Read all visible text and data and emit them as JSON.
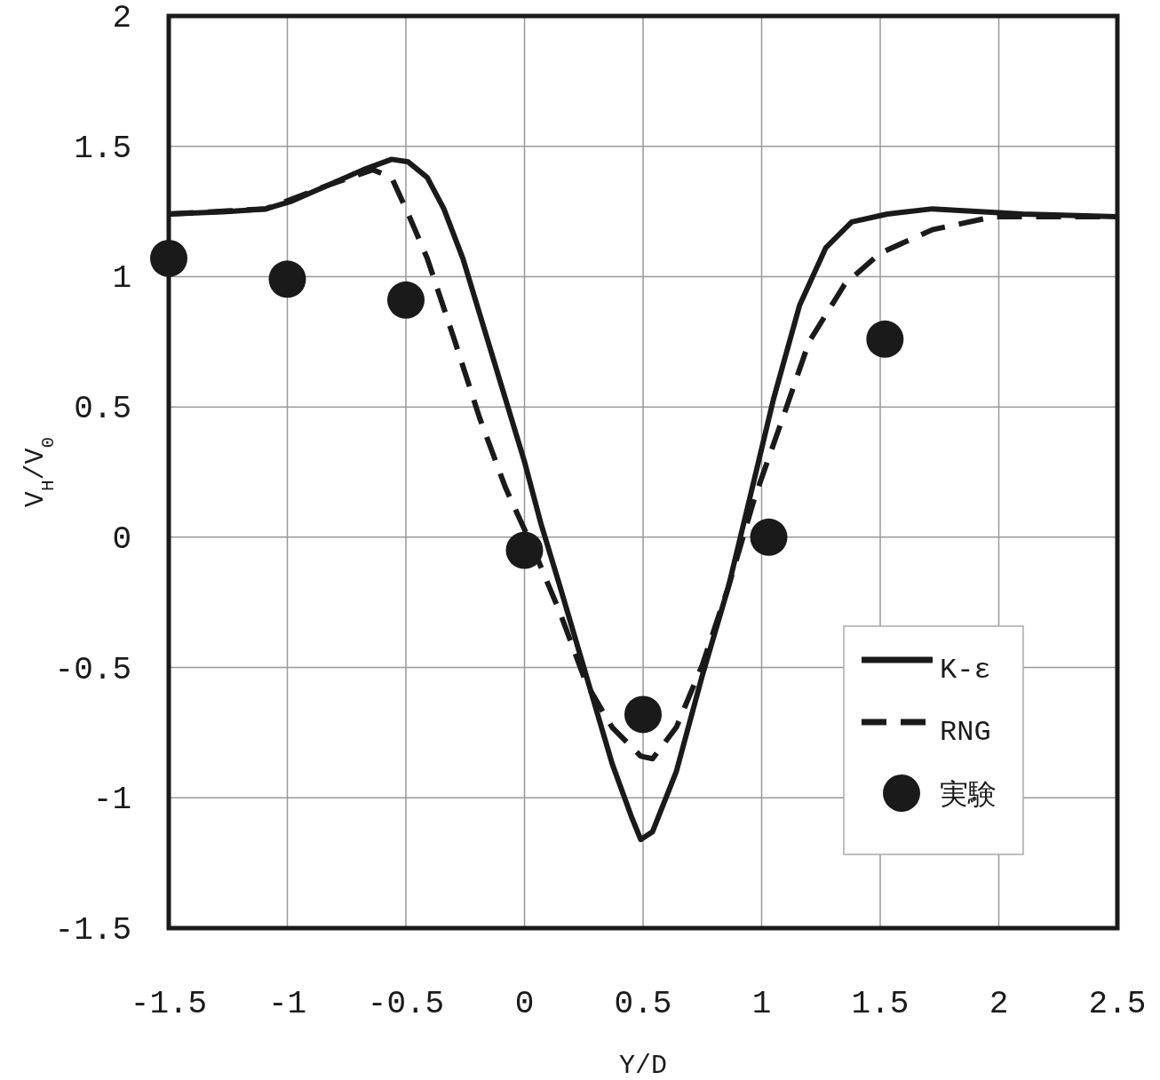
{
  "chart_data": {
    "type": "line",
    "xlabel": "Y/D",
    "ylabel": "V$_{H}$/V$_{0}$",
    "xlim": [
      -1.5,
      2.5
    ],
    "xticks": [
      -1.5,
      -1,
      -0.5,
      0,
      0.5,
      1,
      1.5,
      2,
      2.5
    ],
    "ylim": [
      -1.5,
      2
    ],
    "yticks": [
      -1.5,
      -1,
      -0.5,
      0,
      0.5,
      1,
      1.5,
      2
    ],
    "grid": true,
    "legend": "bottom right",
    "series": [
      {
        "name": "K-ε",
        "line_style": "solid",
        "color": "#1a1a1a",
        "x": [
          -1.5,
          -1.24,
          -1.09,
          -0.98,
          -0.83,
          -0.68,
          -0.56,
          -0.49,
          -0.41,
          -0.34,
          -0.26,
          -0.17,
          -0.08,
          0.0,
          0.07,
          0.15,
          0.26,
          0.37,
          0.45,
          0.49,
          0.54,
          0.64,
          0.75,
          0.86,
          0.95,
          1.05,
          1.16,
          1.27,
          1.38,
          1.53,
          1.72,
          2.1,
          2.5
        ],
        "values": [
          1.24,
          1.25,
          1.26,
          1.29,
          1.35,
          1.41,
          1.45,
          1.44,
          1.38,
          1.26,
          1.07,
          0.8,
          0.53,
          0.29,
          0.05,
          -0.19,
          -0.53,
          -0.87,
          -1.07,
          -1.16,
          -1.13,
          -0.9,
          -0.53,
          -0.19,
          0.15,
          0.53,
          0.89,
          1.11,
          1.21,
          1.24,
          1.26,
          1.24,
          1.23
        ]
      },
      {
        "name": "RNG",
        "line_style": "dashed",
        "color": "#1a1a1a",
        "x": [
          -1.5,
          -1.09,
          -0.83,
          -0.64,
          -0.56,
          -0.49,
          -0.41,
          -0.3,
          -0.19,
          -0.08,
          0.04,
          0.15,
          0.26,
          0.37,
          0.49,
          0.54,
          0.64,
          0.75,
          0.86,
          0.97,
          1.09,
          1.2,
          1.35,
          1.5,
          1.72,
          1.98,
          2.5
        ],
        "values": [
          1.24,
          1.26,
          1.35,
          1.41,
          1.38,
          1.24,
          1.07,
          0.77,
          0.46,
          0.19,
          -0.05,
          -0.29,
          -0.56,
          -0.73,
          -0.84,
          -0.85,
          -0.73,
          -0.49,
          -0.19,
          0.15,
          0.46,
          0.75,
          0.97,
          1.09,
          1.18,
          1.23,
          1.23
        ]
      },
      {
        "name": "実験",
        "type": "scatter",
        "marker": "circle",
        "color": "#1a1a1a",
        "x": [
          -1.5,
          -1.0,
          -0.5,
          0.0,
          0.5,
          1.03,
          1.52
        ],
        "values": [
          1.07,
          0.99,
          0.91,
          -0.05,
          -0.68,
          0.0,
          0.76
        ]
      }
    ]
  }
}
